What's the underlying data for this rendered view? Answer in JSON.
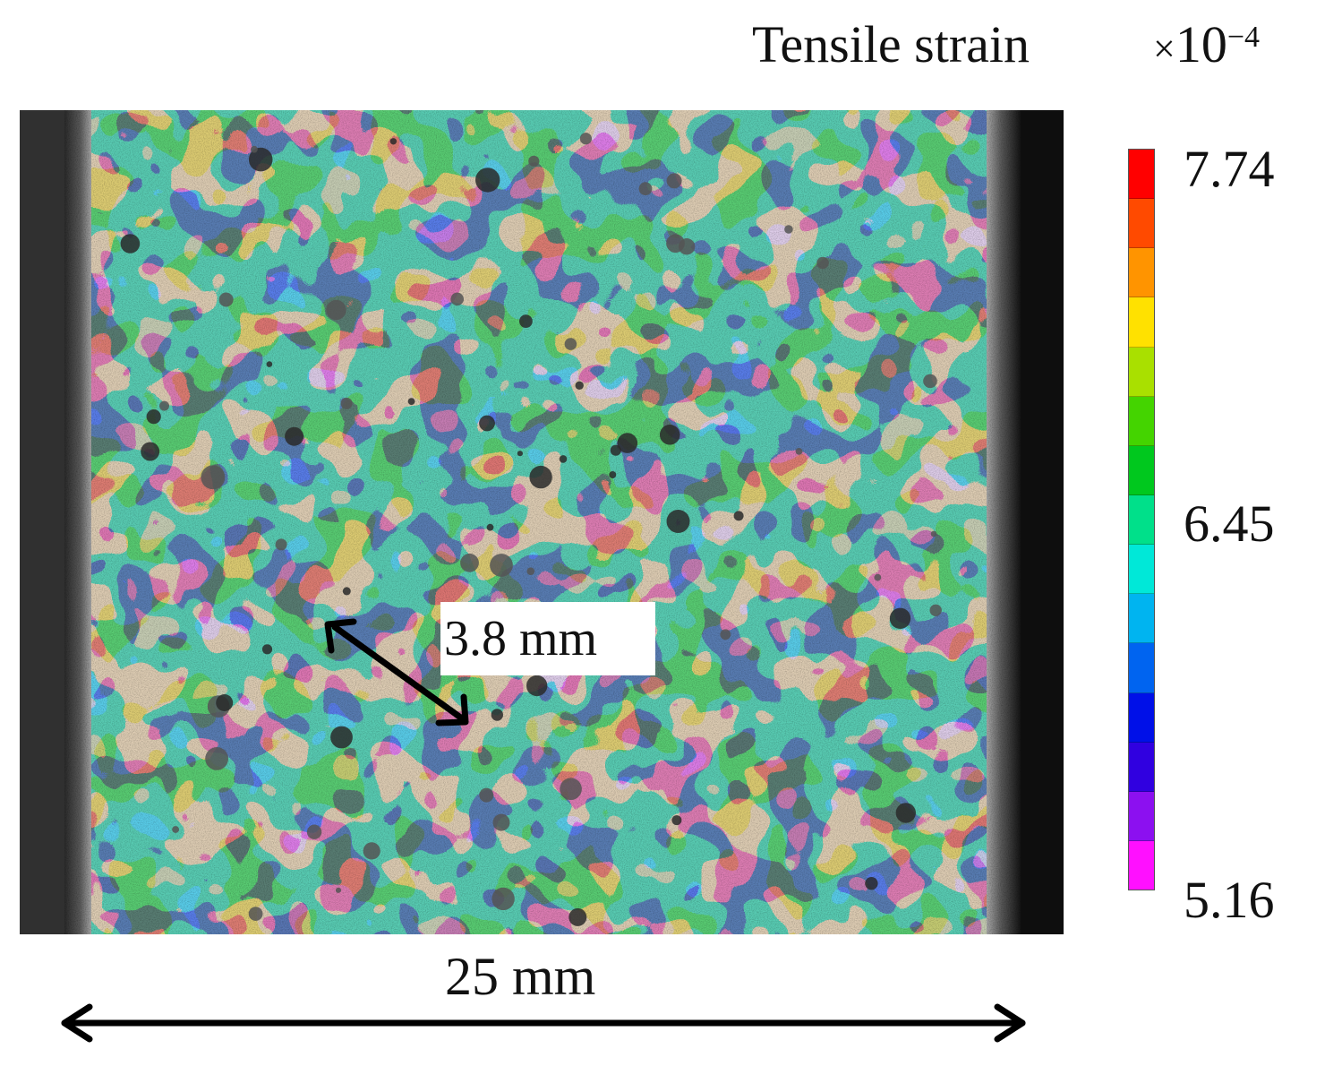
{
  "colorbar": {
    "title": "Tensile strain",
    "multiplier_prefix": "×",
    "multiplier_base": "10",
    "multiplier_exponent": "−4",
    "max_label": "7.74",
    "mid_label": "6.45",
    "min_label": "5.16",
    "bands_top_to_bottom": [
      "#ff0000",
      "#ff4a00",
      "#ff9400",
      "#ffe100",
      "#a9e000",
      "#44d400",
      "#00c81e",
      "#00e08a",
      "#00e8d8",
      "#00b4f0",
      "#0064f0",
      "#0010e8",
      "#3000e0",
      "#8c10f0",
      "#ff10ff"
    ]
  },
  "annotations": {
    "feature_size": "3.8 mm",
    "specimen_width": "25 mm"
  },
  "colors": {
    "high_strain": "#b8352c",
    "low_strain": "#9a3bd0",
    "contour_mid": "#2ea65a",
    "contour_edge": "#1a8aa0",
    "specimen_edge": "#9a9a9a",
    "background": "#1c1c1c"
  }
}
